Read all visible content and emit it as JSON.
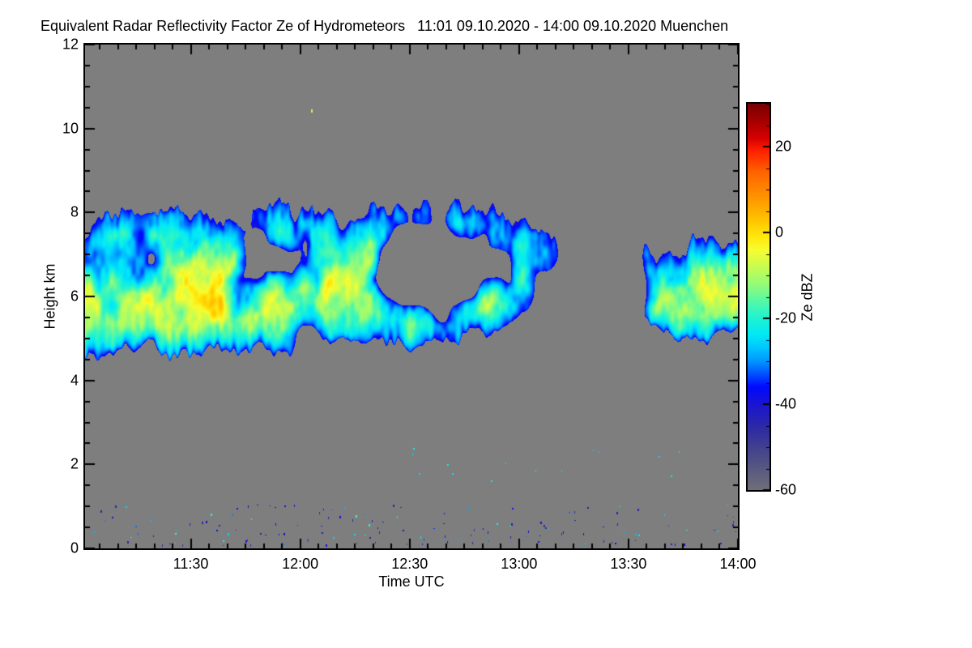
{
  "title": "Equivalent Radar Reflectivity Factor Ze of Hydrometeors   11:01 09.10.2020 - 14:00 09.10.2020 Muenchen",
  "plot_background": "#7E7E7E",
  "axes": {
    "x": {
      "label": "Time UTC",
      "start": "11:01",
      "end": "14:00",
      "duration_min": 179,
      "major_ticks": [
        {
          "label": "11:30",
          "t_min": 29
        },
        {
          "label": "12:00",
          "t_min": 59
        },
        {
          "label": "12:30",
          "t_min": 89
        },
        {
          "label": "13:00",
          "t_min": 119
        },
        {
          "label": "13:30",
          "t_min": 149
        },
        {
          "label": "14:00",
          "t_min": 179
        }
      ],
      "minor_step_min": 5,
      "minor_start_min": 4
    },
    "y": {
      "label": "Height km",
      "min": 0,
      "max": 12,
      "major_ticks": [
        0,
        2,
        4,
        6,
        8,
        10,
        12
      ],
      "minor_step": 0.5
    }
  },
  "colorbar": {
    "label": "Ze dBZ",
    "min": -60,
    "max": 30,
    "ticks": [
      20,
      0,
      -20,
      -40,
      -60
    ],
    "minor_step": 5,
    "stops": [
      [
        30,
        "#780000"
      ],
      [
        26,
        "#A50000"
      ],
      [
        22,
        "#D60000"
      ],
      [
        19,
        "#FF2100"
      ],
      [
        14,
        "#FF6400"
      ],
      [
        8,
        "#FF9600"
      ],
      [
        3,
        "#FFC300"
      ],
      [
        -1,
        "#FFE80C"
      ],
      [
        -4,
        "#F8FC30"
      ],
      [
        -8,
        "#C8FC50"
      ],
      [
        -12,
        "#96FB76"
      ],
      [
        -16,
        "#55F8A6"
      ],
      [
        -20,
        "#1EF3D2"
      ],
      [
        -24,
        "#00E8F8"
      ],
      [
        -27,
        "#00C3FF"
      ],
      [
        -30,
        "#0096FF"
      ],
      [
        -33,
        "#0050FF"
      ],
      [
        -36,
        "#000AFF"
      ],
      [
        -40,
        "#1A14D2"
      ],
      [
        -46,
        "#2F2DA0"
      ],
      [
        -52,
        "#4A4A88"
      ],
      [
        -57,
        "#62627E"
      ],
      [
        -60,
        "#6F6F78"
      ]
    ]
  },
  "chart_data": {
    "type": "heatmap",
    "title": "Equivalent Radar Reflectivity Factor Ze of Hydrometeors",
    "period": "11:01 09.10.2020 - 14:00 09.10.2020",
    "site": "Muenchen",
    "xlabel": "Time UTC",
    "ylabel": "Height km",
    "x_range": [
      "11:01",
      "14:00"
    ],
    "ylim": [
      0,
      12
    ],
    "zlim": [
      -60,
      30
    ],
    "z_units": "dBZ",
    "seed": 20201009,
    "cloud_band": {
      "comment": "mid-level ice cloud band, control points every 6 minutes from 11:01",
      "t_step_min": 6,
      "base_km": [
        4.6,
        4.6,
        4.7,
        4.8,
        4.7,
        4.7,
        4.8,
        4.7,
        4.6,
        4.5,
        4.7,
        4.9,
        5.0,
        4.9,
        4.8,
        4.8,
        4.9,
        5.0,
        5.0,
        4.9,
        4.9,
        5.0,
        5.0,
        5.1,
        5.2,
        5.6,
        5.2,
        4.9,
        4.9,
        5.0,
        5.2
      ],
      "top_km": [
        7.5,
        8.2,
        8.3,
        8.2,
        8.1,
        8.0,
        8.2,
        8.2,
        8.3,
        8.3,
        8.2,
        8.0,
        7.9,
        8.2,
        8.3,
        8.3,
        8.2,
        8.3,
        8.3,
        8.2,
        8.1,
        7.7,
        7.5,
        7.2,
        7.0,
        7.4,
        7.2,
        7.3,
        7.5,
        7.4,
        7.2
      ],
      "peak_dbz": [
        1,
        5,
        7,
        8,
        8,
        9,
        8,
        9,
        10,
        11,
        9,
        6,
        4,
        3,
        4,
        5,
        4,
        6,
        7,
        6,
        5,
        3,
        2,
        1,
        0,
        -5,
        -2,
        2,
        5,
        6,
        4
      ],
      "presence": [
        0.95,
        0.97,
        0.97,
        0.96,
        0.95,
        0.96,
        0.96,
        0.95,
        0.96,
        0.97,
        0.95,
        0.85,
        0.72,
        0.6,
        0.54,
        0.52,
        0.55,
        0.58,
        0.66,
        0.6,
        0.56,
        0.5,
        0.46,
        0.4,
        0.34,
        0.22,
        0.5,
        0.82,
        0.95,
        0.92,
        0.88
      ],
      "gap_strength": [
        0,
        0,
        0,
        0,
        0,
        0,
        0,
        0,
        0,
        0,
        0,
        0.2,
        0.35,
        0.5,
        0.55,
        0.5,
        0.45,
        0.5,
        0.4,
        0.32,
        0.35,
        0.4,
        0.4,
        0.35,
        0.3,
        0.2,
        0.15,
        0.05,
        0,
        0,
        0
      ],
      "gap_center_km": 6.6,
      "fall_streak_slant_min_per_km": 2.4
    },
    "ground_clutter": {
      "count": 150,
      "h_range_km": [
        0.08,
        1.05
      ],
      "dbz_range": [
        -50,
        -20
      ]
    },
    "mid_specks": {
      "count": 14,
      "t_range_min": [
        85,
        165
      ],
      "h_range_km": [
        1.6,
        2.45
      ],
      "dbz_range": [
        -27,
        -21
      ]
    },
    "isolated_speck": {
      "t_min": 62,
      "h_km": 10.45,
      "dbz": -8
    }
  }
}
